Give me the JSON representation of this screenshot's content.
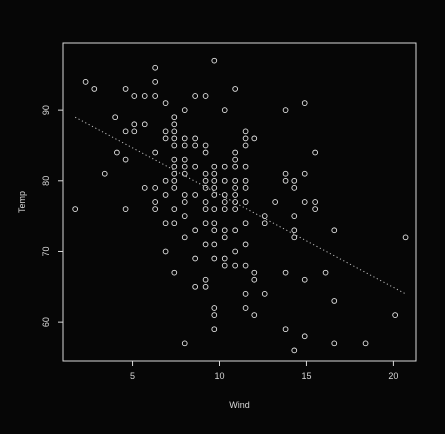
{
  "chart_data": {
    "type": "scatter",
    "title": "",
    "xlabel": "Wind",
    "ylabel": "Temp",
    "xlim": [
      1.0,
      21.3
    ],
    "ylim": [
      54.5,
      99.5
    ],
    "xticks": [
      5,
      10,
      15,
      20
    ],
    "yticks": [
      60,
      70,
      80,
      90
    ],
    "xtick_labels": [
      "5",
      "10",
      "15",
      "20"
    ],
    "ytick_labels": [
      "60",
      "70",
      "80",
      "90"
    ],
    "grid": false,
    "legend": "none",
    "colors": {
      "background": "#060606",
      "axes": "#d8d8d8",
      "points": "#e6e6e6",
      "trend": "#bdbdbd"
    },
    "series": [
      {
        "points": [
          [
            1.7,
            76
          ],
          [
            2.3,
            94
          ],
          [
            2.8,
            93
          ],
          [
            3.4,
            81
          ],
          [
            4.0,
            89
          ],
          [
            4.1,
            84
          ],
          [
            4.6,
            87
          ],
          [
            4.6,
            93
          ],
          [
            4.6,
            76
          ],
          [
            4.6,
            83
          ],
          [
            5.1,
            88
          ],
          [
            5.1,
            87
          ],
          [
            5.1,
            92
          ],
          [
            5.7,
            92
          ],
          [
            5.7,
            88
          ],
          [
            5.7,
            79
          ],
          [
            6.3,
            92
          ],
          [
            6.3,
            94
          ],
          [
            6.3,
            96
          ],
          [
            6.3,
            84
          ],
          [
            6.3,
            79
          ],
          [
            6.3,
            77
          ],
          [
            6.3,
            76
          ],
          [
            6.9,
            91
          ],
          [
            6.9,
            87
          ],
          [
            6.9,
            86
          ],
          [
            6.9,
            80
          ],
          [
            6.9,
            78
          ],
          [
            6.9,
            74
          ],
          [
            6.9,
            70
          ],
          [
            7.4,
            89
          ],
          [
            7.4,
            88
          ],
          [
            7.4,
            87
          ],
          [
            7.4,
            86
          ],
          [
            7.4,
            85
          ],
          [
            7.4,
            83
          ],
          [
            7.4,
            82
          ],
          [
            7.4,
            81
          ],
          [
            7.4,
            80
          ],
          [
            7.4,
            79
          ],
          [
            7.4,
            76
          ],
          [
            7.4,
            74
          ],
          [
            7.4,
            67
          ],
          [
            8.0,
            90
          ],
          [
            8.0,
            86
          ],
          [
            8.0,
            85
          ],
          [
            8.0,
            83
          ],
          [
            8.0,
            82
          ],
          [
            8.0,
            81
          ],
          [
            8.0,
            78
          ],
          [
            8.0,
            77
          ],
          [
            8.0,
            75
          ],
          [
            8.0,
            72
          ],
          [
            8.0,
            57
          ],
          [
            8.6,
            92
          ],
          [
            8.6,
            86
          ],
          [
            8.6,
            85
          ],
          [
            8.6,
            82
          ],
          [
            8.6,
            78
          ],
          [
            8.6,
            73
          ],
          [
            8.6,
            69
          ],
          [
            8.6,
            65
          ],
          [
            9.2,
            92
          ],
          [
            9.2,
            85
          ],
          [
            9.2,
            84
          ],
          [
            9.2,
            81
          ],
          [
            9.2,
            80
          ],
          [
            9.2,
            79
          ],
          [
            9.2,
            77
          ],
          [
            9.2,
            76
          ],
          [
            9.2,
            74
          ],
          [
            9.2,
            71
          ],
          [
            9.2,
            66
          ],
          [
            9.2,
            65
          ],
          [
            9.7,
            97
          ],
          [
            9.7,
            82
          ],
          [
            9.7,
            81
          ],
          [
            9.7,
            80
          ],
          [
            9.7,
            79
          ],
          [
            9.7,
            78
          ],
          [
            9.7,
            76
          ],
          [
            9.7,
            74
          ],
          [
            9.7,
            73
          ],
          [
            9.7,
            71
          ],
          [
            9.7,
            69
          ],
          [
            9.7,
            62
          ],
          [
            9.7,
            61
          ],
          [
            9.7,
            59
          ],
          [
            10.3,
            90
          ],
          [
            10.3,
            82
          ],
          [
            10.3,
            80
          ],
          [
            10.3,
            78
          ],
          [
            10.3,
            77
          ],
          [
            10.3,
            76
          ],
          [
            10.3,
            73
          ],
          [
            10.3,
            72
          ],
          [
            10.3,
            69
          ],
          [
            10.3,
            68
          ],
          [
            10.9,
            93
          ],
          [
            10.9,
            84
          ],
          [
            10.9,
            83
          ],
          [
            10.9,
            82
          ],
          [
            10.9,
            80
          ],
          [
            10.9,
            79
          ],
          [
            10.9,
            78
          ],
          [
            10.9,
            77
          ],
          [
            10.9,
            76
          ],
          [
            10.9,
            73
          ],
          [
            10.9,
            70
          ],
          [
            10.9,
            68
          ],
          [
            11.5,
            87
          ],
          [
            11.5,
            86
          ],
          [
            11.5,
            85
          ],
          [
            11.5,
            82
          ],
          [
            11.5,
            80
          ],
          [
            11.5,
            79
          ],
          [
            11.5,
            77
          ],
          [
            11.5,
            74
          ],
          [
            11.5,
            71
          ],
          [
            11.5,
            68
          ],
          [
            11.5,
            64
          ],
          [
            11.5,
            62
          ],
          [
            12.0,
            86
          ],
          [
            12.0,
            67
          ],
          [
            12.0,
            66
          ],
          [
            12.0,
            61
          ],
          [
            12.6,
            75
          ],
          [
            12.6,
            74
          ],
          [
            12.6,
            64
          ],
          [
            13.2,
            77
          ],
          [
            13.8,
            90
          ],
          [
            13.8,
            81
          ],
          [
            13.8,
            80
          ],
          [
            13.8,
            67
          ],
          [
            13.8,
            59
          ],
          [
            14.3,
            80
          ],
          [
            14.3,
            79
          ],
          [
            14.3,
            75
          ],
          [
            14.3,
            73
          ],
          [
            14.3,
            72
          ],
          [
            14.3,
            56
          ],
          [
            14.9,
            91
          ],
          [
            14.9,
            81
          ],
          [
            14.9,
            77
          ],
          [
            14.9,
            66
          ],
          [
            14.9,
            58
          ],
          [
            15.5,
            84
          ],
          [
            15.5,
            77
          ],
          [
            15.5,
            76
          ],
          [
            16.1,
            67
          ],
          [
            16.6,
            73
          ],
          [
            16.6,
            63
          ],
          [
            16.6,
            57
          ],
          [
            18.4,
            57
          ],
          [
            20.1,
            61
          ],
          [
            20.7,
            72
          ]
        ]
      }
    ],
    "trend_line": {
      "x": [
        1.7,
        20.7
      ],
      "y": [
        89.0,
        64.0
      ]
    }
  }
}
